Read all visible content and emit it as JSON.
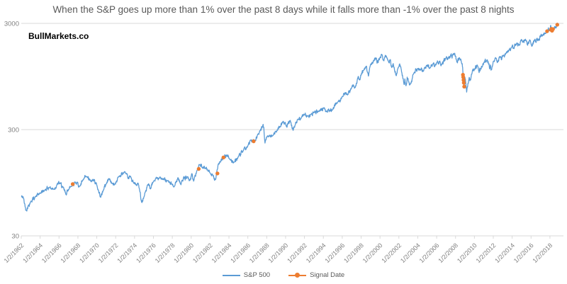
{
  "watermark": "BullMarkets.co",
  "legend": {
    "items": [
      {
        "label": "S&P 500",
        "color": "#5B9BD5"
      },
      {
        "label": "Signal Date",
        "color": "#ED7D31"
      }
    ]
  },
  "chart_data": {
    "type": "line",
    "title": "When the S&P goes up more than 1% over the past 8 days while it falls more than -1% over the past 8 nights",
    "y_scale": "log",
    "y_ticks": [
      3000,
      300,
      30
    ],
    "ylim": [
      30,
      3000
    ],
    "xlim": [
      1962,
      2019.5
    ],
    "grid": "horizontal-only",
    "legend_position": "bottom-center",
    "title_color": "#595959",
    "grid_color": "#D9D9D9",
    "tick_label_color": "#808080",
    "x_tick_labels": [
      "1/2/1962",
      "1/2/1964",
      "1/2/1966",
      "1/2/1968",
      "1/2/1970",
      "1/2/1972",
      "1/2/1974",
      "1/2/1976",
      "1/2/1978",
      "1/2/1980",
      "1/2/1982",
      "1/2/1984",
      "1/2/1986",
      "1/2/1988",
      "1/2/1990",
      "1/2/1992",
      "1/2/1994",
      "1/2/1996",
      "1/2/1998",
      "1/2/2000",
      "1/2/2002",
      "1/2/2004",
      "1/2/2006",
      "1/2/2008",
      "1/2/2010",
      "1/2/2012",
      "1/2/2014",
      "1/2/2016",
      "1/2/2018"
    ],
    "series": [
      {
        "name": "S&P 500",
        "type": "line",
        "color": "#5B9BD5",
        "points": [
          [
            1962.0,
            70
          ],
          [
            1962.2,
            69.5
          ],
          [
            1962.45,
            55
          ],
          [
            1962.5,
            52.3
          ],
          [
            1962.75,
            58
          ],
          [
            1963.0,
            63
          ],
          [
            1963.5,
            70
          ],
          [
            1964.0,
            75.5
          ],
          [
            1964.5,
            81
          ],
          [
            1965.0,
            86
          ],
          [
            1965.45,
            82
          ],
          [
            1965.8,
            92
          ],
          [
            1966.1,
            93.8
          ],
          [
            1966.4,
            86
          ],
          [
            1966.75,
            73.2
          ],
          [
            1967.0,
            82
          ],
          [
            1967.45,
            92
          ],
          [
            1967.7,
            96.7
          ],
          [
            1968.2,
            88
          ],
          [
            1968.5,
            99
          ],
          [
            1968.9,
            108.4
          ],
          [
            1969.4,
            97
          ],
          [
            1969.7,
            102
          ],
          [
            1970.0,
            90
          ],
          [
            1970.4,
            69.3
          ],
          [
            1970.7,
            81
          ],
          [
            1971.0,
            93
          ],
          [
            1971.3,
            104
          ],
          [
            1971.6,
            94
          ],
          [
            1971.85,
            90.2
          ],
          [
            1972.3,
            108
          ],
          [
            1973.0,
            120.2
          ],
          [
            1973.3,
            104
          ],
          [
            1973.6,
            108
          ],
          [
            1973.9,
            94
          ],
          [
            1974.2,
            90
          ],
          [
            1974.4,
            93
          ],
          [
            1974.75,
            62.3
          ],
          [
            1975.0,
            70
          ],
          [
            1975.4,
            91
          ],
          [
            1975.7,
            83
          ],
          [
            1976.0,
            98
          ],
          [
            1976.7,
            107.8
          ],
          [
            1977.0,
            102
          ],
          [
            1977.5,
            99
          ],
          [
            1978.2,
            86.9
          ],
          [
            1978.6,
            106
          ],
          [
            1978.85,
            93
          ],
          [
            1979.0,
            99
          ],
          [
            1979.6,
            108
          ],
          [
            1979.85,
            100
          ],
          [
            1980.1,
            115
          ],
          [
            1980.25,
            98.2
          ],
          [
            1980.6,
            123
          ],
          [
            1980.9,
            140.5
          ],
          [
            1981.2,
            130
          ],
          [
            1981.6,
            133
          ],
          [
            1981.8,
            122
          ],
          [
            1982.0,
            117
          ],
          [
            1982.3,
            110
          ],
          [
            1982.6,
            102.4
          ],
          [
            1982.85,
            140
          ],
          [
            1983.1,
            148
          ],
          [
            1983.45,
            166
          ],
          [
            1983.8,
            172
          ],
          [
            1984.1,
            157
          ],
          [
            1984.55,
            147.8
          ],
          [
            1985.0,
            167
          ],
          [
            1985.5,
            188
          ],
          [
            1986.0,
            211
          ],
          [
            1986.3,
            238
          ],
          [
            1986.55,
            234
          ],
          [
            1986.75,
            236
          ],
          [
            1987.0,
            264
          ],
          [
            1987.3,
            292
          ],
          [
            1987.62,
            336
          ],
          [
            1987.7,
            310
          ],
          [
            1987.82,
            224
          ],
          [
            1988.0,
            255
          ],
          [
            1988.3,
            266
          ],
          [
            1988.6,
            262
          ],
          [
            1989.0,
            285
          ],
          [
            1989.4,
            320
          ],
          [
            1989.75,
            359
          ],
          [
            1990.05,
            330
          ],
          [
            1990.2,
            340
          ],
          [
            1990.5,
            366
          ],
          [
            1990.8,
            295
          ],
          [
            1991.0,
            330
          ],
          [
            1991.3,
            375
          ],
          [
            1991.6,
            380
          ],
          [
            1992.0,
            415
          ],
          [
            1992.3,
            403
          ],
          [
            1992.7,
            418
          ],
          [
            1993.0,
            435
          ],
          [
            1993.5,
            448
          ],
          [
            1994.1,
            482
          ],
          [
            1994.3,
            445
          ],
          [
            1994.7,
            455
          ],
          [
            1994.95,
            460
          ],
          [
            1995.5,
            540
          ],
          [
            1996.0,
            615
          ],
          [
            1996.4,
            670
          ],
          [
            1996.55,
            635
          ],
          [
            1997.0,
            740
          ],
          [
            1997.15,
            790
          ],
          [
            1997.35,
            745
          ],
          [
            1997.7,
            950
          ],
          [
            1997.85,
            880
          ],
          [
            1998.0,
            975
          ],
          [
            1998.3,
            1100
          ],
          [
            1998.55,
            1187
          ],
          [
            1998.65,
            1050
          ],
          [
            1998.78,
            957
          ],
          [
            1999.0,
            1230
          ],
          [
            1999.35,
            1330
          ],
          [
            1999.55,
            1420
          ],
          [
            1999.8,
            1280
          ],
          [
            2000.0,
            1440
          ],
          [
            2000.2,
            1527
          ],
          [
            2000.35,
            1360
          ],
          [
            2000.65,
            1480
          ],
          [
            2000.9,
            1315
          ],
          [
            2001.1,
            1370
          ],
          [
            2001.25,
            1150
          ],
          [
            2001.4,
            1255
          ],
          [
            2001.72,
            965
          ],
          [
            2001.95,
            1160
          ],
          [
            2002.2,
            1170
          ],
          [
            2002.55,
            797
          ],
          [
            2002.63,
            900
          ],
          [
            2002.76,
            776
          ],
          [
            2002.88,
            936
          ],
          [
            2003.0,
            860
          ],
          [
            2003.2,
            800
          ],
          [
            2003.55,
            1000
          ],
          [
            2004.0,
            1130
          ],
          [
            2004.25,
            1110
          ],
          [
            2004.6,
            1065
          ],
          [
            2004.95,
            1210
          ],
          [
            2005.3,
            1140
          ],
          [
            2005.6,
            1240
          ],
          [
            2005.8,
            1175
          ],
          [
            2006.0,
            1280
          ],
          [
            2006.35,
            1325
          ],
          [
            2006.5,
            1235
          ],
          [
            2007.0,
            1425
          ],
          [
            2007.2,
            1387
          ],
          [
            2007.55,
            1553
          ],
          [
            2007.63,
            1411
          ],
          [
            2007.78,
            1565
          ],
          [
            2008.0,
            1470
          ],
          [
            2008.05,
            1380
          ],
          [
            2008.2,
            1273
          ],
          [
            2008.4,
            1426
          ],
          [
            2008.65,
            1255
          ],
          [
            2008.75,
            1165
          ],
          [
            2008.82,
            900
          ],
          [
            2008.87,
            940
          ],
          [
            2008.92,
            752
          ],
          [
            2009.0,
            931
          ],
          [
            2009.1,
            805
          ],
          [
            2009.18,
            676
          ],
          [
            2009.45,
            930
          ],
          [
            2009.6,
            880
          ],
          [
            2009.8,
            1095
          ],
          [
            2010.0,
            1115
          ],
          [
            2010.3,
            1217
          ],
          [
            2010.5,
            1030
          ],
          [
            2010.65,
            1125
          ],
          [
            2010.85,
            1180
          ],
          [
            2011.0,
            1280
          ],
          [
            2011.35,
            1363
          ],
          [
            2011.55,
            1250
          ],
          [
            2011.6,
            1120
          ],
          [
            2011.7,
            1220
          ],
          [
            2011.78,
            1099
          ],
          [
            2012.0,
            1310
          ],
          [
            2012.27,
            1420
          ],
          [
            2012.42,
            1280
          ],
          [
            2012.7,
            1465
          ],
          [
            2012.87,
            1360
          ],
          [
            2013.0,
            1480
          ],
          [
            2013.4,
            1600
          ],
          [
            2013.5,
            1630
          ],
          [
            2013.65,
            1680
          ],
          [
            2013.95,
            1800
          ],
          [
            2014.1,
            1742
          ],
          [
            2014.5,
            1960
          ],
          [
            2014.73,
            1862
          ],
          [
            2014.95,
            2090
          ],
          [
            2015.1,
            1992
          ],
          [
            2015.4,
            2130
          ],
          [
            2015.63,
            1868
          ],
          [
            2015.85,
            2100
          ],
          [
            2016.1,
            1829
          ],
          [
            2016.35,
            2090
          ],
          [
            2016.48,
            2001
          ],
          [
            2016.65,
            2175
          ],
          [
            2016.85,
            2085
          ],
          [
            2017.0,
            2270
          ],
          [
            2017.25,
            2350
          ],
          [
            2017.5,
            2430
          ],
          [
            2017.75,
            2560
          ],
          [
            2018.0,
            2695
          ],
          [
            2018.07,
            2873
          ],
          [
            2018.13,
            2581
          ],
          [
            2018.25,
            2640
          ],
          [
            2018.35,
            2700
          ],
          [
            2018.45,
            2720
          ],
          [
            2018.6,
            2800
          ],
          [
            2018.74,
            2930
          ],
          [
            2018.82,
            2885
          ]
        ]
      },
      {
        "name": "Signal Date",
        "type": "scatter",
        "color": "#ED7D31",
        "points": [
          [
            1967.45,
            92
          ],
          [
            1980.8,
            128
          ],
          [
            1982.78,
            116
          ],
          [
            1983.42,
            164
          ],
          [
            1986.62,
            233
          ],
          [
            2008.79,
            985
          ],
          [
            2008.815,
            935
          ],
          [
            2008.845,
            878
          ],
          [
            2008.875,
            828
          ],
          [
            2008.92,
            762
          ],
          [
            2017.7,
            2530
          ],
          [
            2018.12,
            2610
          ],
          [
            2018.16,
            2660
          ],
          [
            2018.22,
            2560
          ],
          [
            2018.32,
            2650
          ],
          [
            2018.78,
            2915
          ]
        ]
      }
    ]
  }
}
